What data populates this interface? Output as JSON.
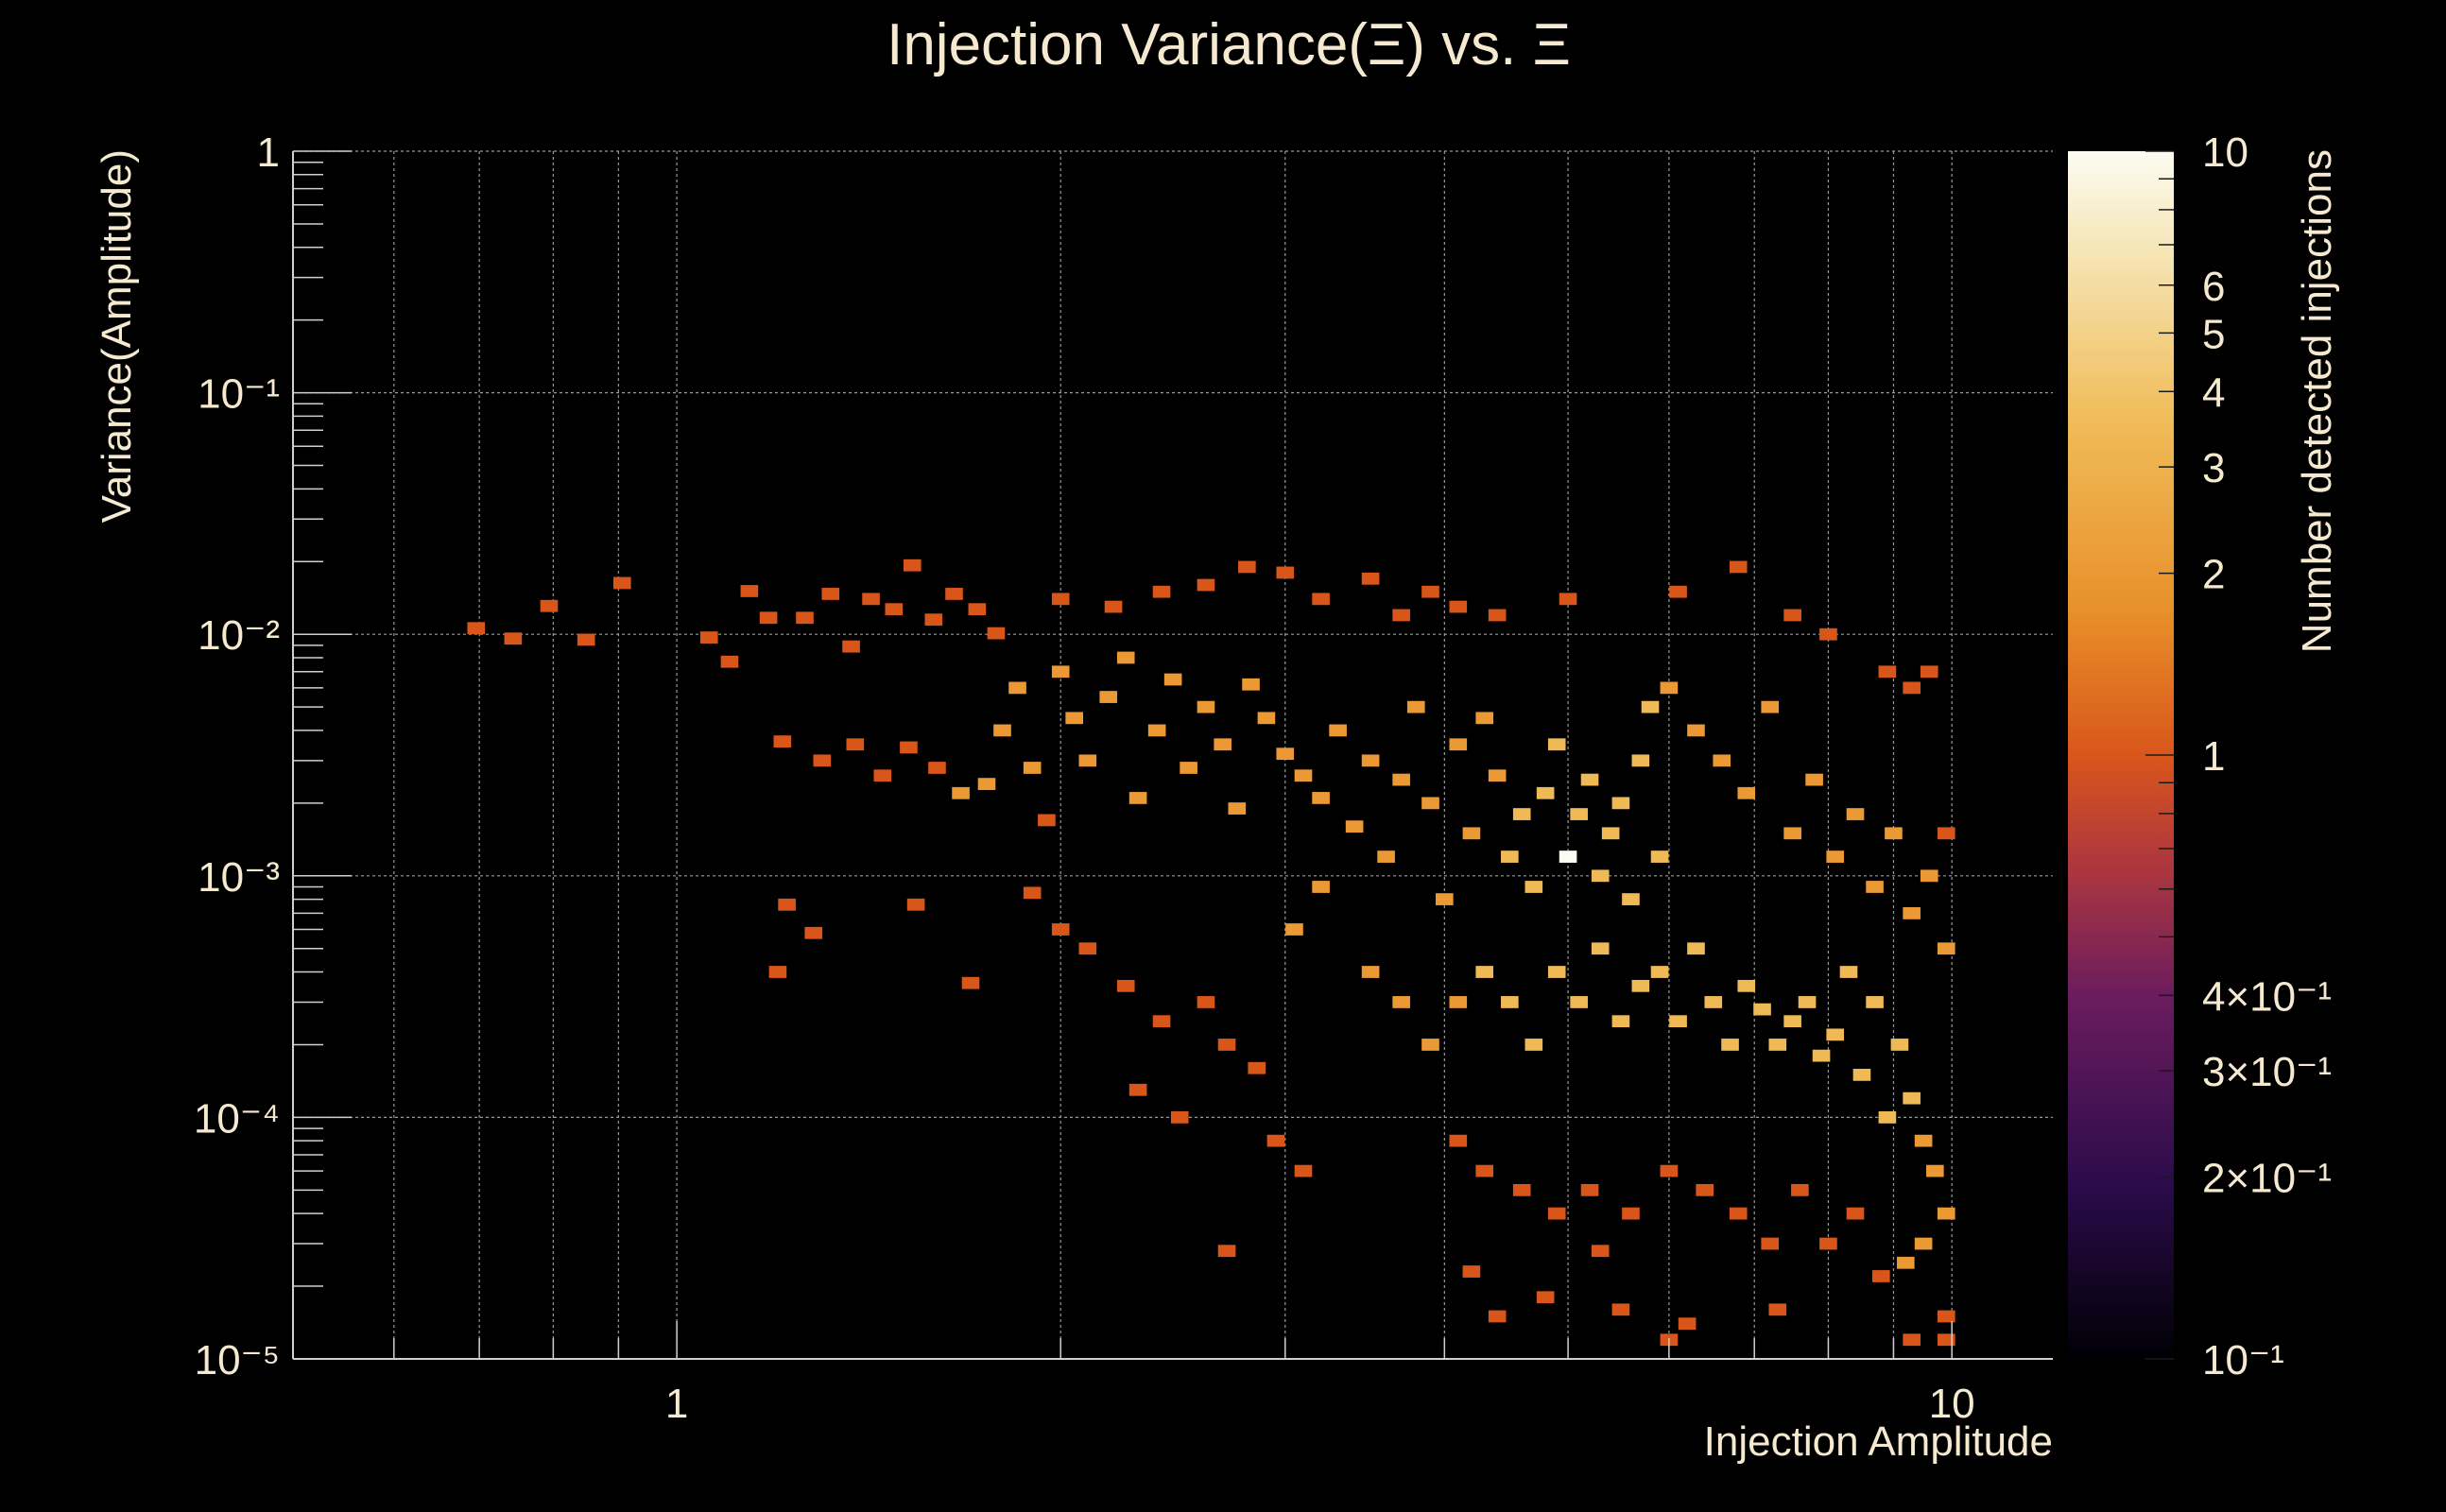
{
  "chart_data": {
    "type": "heatmap",
    "title": "Injection Variance(Ξ) vs. Ξ",
    "xlabel": "Injection Amplitude",
    "ylabel": "Variance(Amplitude)",
    "colorbar_label": "Number detected injections",
    "x_scale": "log",
    "y_scale": "log",
    "z_scale": "log",
    "xlim": [
      0.5,
      12
    ],
    "ylim": [
      1e-05,
      1
    ],
    "zlim": [
      0.1,
      10
    ],
    "x_ticks": [
      "1",
      "10"
    ],
    "y_ticks": [
      "1",
      "10⁻¹",
      "10⁻²",
      "10⁻³",
      "10⁻⁴",
      "10⁻⁵"
    ],
    "z_ticks": [
      "10",
      "6",
      "5",
      "4",
      "3",
      "2",
      "1",
      "4×10⁻¹",
      "3×10⁻¹",
      "2×10⁻¹",
      "10⁻¹"
    ],
    "grid": true,
    "colormap": [
      "#000004",
      "#2a0b4a",
      "#6b1c5e",
      "#b43a3a",
      "#d9561a",
      "#e8902a",
      "#f0bd5a",
      "#f6e6b8",
      "#fcfcf3"
    ],
    "bins_x": 100,
    "bins_y": 100,
    "cells": [
      [
        0.696,
        0.0106,
        1
      ],
      [
        0.744,
        0.0096,
        1
      ],
      [
        0.794,
        0.0131,
        1
      ],
      [
        0.849,
        0.0095,
        1
      ],
      [
        0.906,
        0.0163,
        1
      ],
      [
        1.06,
        0.0097,
        1
      ],
      [
        1.1,
        0.0077,
        1
      ],
      [
        1.14,
        0.0151,
        1
      ],
      [
        1.18,
        0.0117,
        1
      ],
      [
        1.21,
        0.0036,
        1
      ],
      [
        1.26,
        0.0117,
        1
      ],
      [
        1.32,
        0.0147,
        1
      ],
      [
        1.37,
        0.0089,
        1
      ],
      [
        1.42,
        0.014,
        1
      ],
      [
        1.48,
        0.0127,
        1
      ],
      [
        1.53,
        0.0193,
        1
      ],
      [
        1.59,
        0.0115,
        1
      ],
      [
        1.65,
        0.0147,
        1
      ],
      [
        1.72,
        0.0127,
        1
      ],
      [
        1.78,
        0.0101,
        1
      ],
      [
        1.22,
        0.00076,
        1
      ],
      [
        1.28,
        0.00058,
        1
      ],
      [
        1.2,
        0.0004,
        1
      ],
      [
        1.54,
        0.00076,
        1
      ],
      [
        1.7,
        0.00036,
        1
      ],
      [
        1.3,
        0.003,
        1
      ],
      [
        1.38,
        0.0035,
        1
      ],
      [
        1.45,
        0.0026,
        1
      ],
      [
        1.52,
        0.0034,
        1
      ],
      [
        1.6,
        0.0028,
        1
      ],
      [
        1.67,
        0.0022,
        2
      ],
      [
        1.75,
        0.0024,
        2
      ],
      [
        1.8,
        0.004,
        2
      ],
      [
        1.85,
        0.006,
        2
      ],
      [
        1.9,
        0.0028,
        2
      ],
      [
        1.95,
        0.0017,
        1
      ],
      [
        2.0,
        0.007,
        2
      ],
      [
        2.05,
        0.0045,
        2
      ],
      [
        2.1,
        0.003,
        2
      ],
      [
        2.18,
        0.0055,
        2
      ],
      [
        2.25,
        0.008,
        2
      ],
      [
        2.3,
        0.0021,
        2
      ],
      [
        2.38,
        0.004,
        2
      ],
      [
        2.45,
        0.0065,
        2
      ],
      [
        2.52,
        0.0028,
        2
      ],
      [
        2.6,
        0.005,
        2
      ],
      [
        2.68,
        0.0035,
        2
      ],
      [
        2.75,
        0.0019,
        2
      ],
      [
        2.82,
        0.0062,
        2
      ],
      [
        2.9,
        0.0045,
        2
      ],
      [
        1.9,
        0.00085,
        1
      ],
      [
        2.0,
        0.0006,
        1
      ],
      [
        2.1,
        0.0005,
        1
      ],
      [
        2.25,
        0.00035,
        1
      ],
      [
        2.4,
        0.00025,
        1
      ],
      [
        2.6,
        0.0003,
        1
      ],
      [
        2.7,
        0.0002,
        1
      ],
      [
        2.85,
        0.00016,
        1
      ],
      [
        2.3,
        0.00013,
        1
      ],
      [
        2.48,
        0.0001,
        1
      ],
      [
        2.95,
        8e-05,
        1
      ],
      [
        3.1,
        6e-05,
        1
      ],
      [
        2.7,
        2.8e-05,
        1
      ],
      [
        3.05,
        0.0006,
        2
      ],
      [
        3.2,
        0.0009,
        2
      ],
      [
        3.0,
        0.0032,
        2
      ],
      [
        3.1,
        0.0026,
        2
      ],
      [
        3.2,
        0.0021,
        2
      ],
      [
        3.3,
        0.004,
        2
      ],
      [
        3.4,
        0.0016,
        2
      ],
      [
        3.5,
        0.003,
        2
      ],
      [
        3.6,
        0.0012,
        2
      ],
      [
        3.7,
        0.0025,
        2
      ],
      [
        3.8,
        0.005,
        2
      ],
      [
        3.9,
        0.002,
        2
      ],
      [
        4.0,
        0.0008,
        2
      ],
      [
        4.1,
        0.0035,
        2
      ],
      [
        4.2,
        0.0015,
        2
      ],
      [
        4.3,
        0.0045,
        2
      ],
      [
        4.4,
        0.0026,
        2
      ],
      [
        4.5,
        0.0012,
        3
      ],
      [
        4.6,
        0.0018,
        3
      ],
      [
        4.7,
        0.0009,
        3
      ],
      [
        4.8,
        0.0022,
        3
      ],
      [
        4.9,
        0.0035,
        3
      ],
      [
        5.0,
        0.0012,
        10
      ],
      [
        5.1,
        0.0018,
        3
      ],
      [
        5.2,
        0.0025,
        3
      ],
      [
        5.3,
        0.001,
        3
      ],
      [
        5.4,
        0.0015,
        3
      ],
      [
        5.5,
        0.002,
        3
      ],
      [
        5.6,
        0.0008,
        3
      ],
      [
        5.7,
        0.003,
        3
      ],
      [
        5.8,
        0.005,
        3
      ],
      [
        5.9,
        0.0012,
        3
      ],
      [
        3.5,
        0.0004,
        2
      ],
      [
        3.7,
        0.0003,
        2
      ],
      [
        3.9,
        0.0002,
        2
      ],
      [
        4.1,
        0.0003,
        2
      ],
      [
        4.3,
        0.0004,
        3
      ],
      [
        4.5,
        0.0003,
        3
      ],
      [
        4.7,
        0.0002,
        3
      ],
      [
        4.9,
        0.0004,
        3
      ],
      [
        5.1,
        0.0003,
        3
      ],
      [
        5.3,
        0.0005,
        3
      ],
      [
        5.5,
        0.00025,
        3
      ],
      [
        5.7,
        0.00035,
        3
      ],
      [
        5.9,
        0.0004,
        3
      ],
      [
        6.1,
        0.00025,
        3
      ],
      [
        6.3,
        0.0005,
        3
      ],
      [
        6.5,
        0.0003,
        3
      ],
      [
        6.7,
        0.0002,
        3
      ],
      [
        6.9,
        0.00035,
        3
      ],
      [
        7.1,
        0.00028,
        3
      ],
      [
        7.3,
        0.0002,
        3
      ],
      [
        7.5,
        0.00025,
        3
      ],
      [
        7.7,
        0.0003,
        3
      ],
      [
        7.9,
        0.00018,
        3
      ],
      [
        8.1,
        0.00022,
        3
      ],
      [
        8.3,
        0.0004,
        3
      ],
      [
        8.5,
        0.00015,
        3
      ],
      [
        8.7,
        0.0003,
        3
      ],
      [
        8.9,
        0.0001,
        3
      ],
      [
        9.1,
        0.0002,
        3
      ],
      [
        9.3,
        0.00012,
        3
      ],
      [
        9.5,
        8e-05,
        2
      ],
      [
        9.7,
        6e-05,
        2
      ],
      [
        9.9,
        4e-05,
        2
      ],
      [
        9.5,
        3e-05,
        2
      ],
      [
        9.2,
        2.5e-05,
        2
      ],
      [
        4.1,
        8e-05,
        1
      ],
      [
        4.3,
        6e-05,
        1
      ],
      [
        4.6,
        5e-05,
        1
      ],
      [
        4.9,
        4e-05,
        1
      ],
      [
        5.2,
        5e-05,
        1
      ],
      [
        5.6,
        4e-05,
        1
      ],
      [
        6.0,
        6e-05,
        1
      ],
      [
        6.4,
        5e-05,
        1
      ],
      [
        6.8,
        4e-05,
        1
      ],
      [
        7.2,
        3e-05,
        1
      ],
      [
        7.6,
        5e-05,
        1
      ],
      [
        8.0,
        3e-05,
        1
      ],
      [
        8.4,
        4e-05,
        1
      ],
      [
        8.8,
        2.2e-05,
        1
      ],
      [
        9.9,
        1.5e-05,
        1
      ],
      [
        4.2,
        2.3e-05,
        1
      ],
      [
        4.8,
        1.8e-05,
        1
      ],
      [
        5.5,
        1.6e-05,
        1
      ],
      [
        6.2,
        1.4e-05,
        1
      ],
      [
        7.3,
        1.6e-05,
        1
      ],
      [
        9.3,
        1.2e-05,
        1
      ],
      [
        9.9,
        1.2e-05,
        1
      ],
      [
        6.0,
        1.2e-05,
        1
      ],
      [
        4.4,
        1.5e-05,
        1
      ],
      [
        5.3,
        2.8e-05,
        1
      ],
      [
        6.0,
        0.006,
        2
      ],
      [
        6.3,
        0.004,
        2
      ],
      [
        6.6,
        0.003,
        2
      ],
      [
        6.9,
        0.0022,
        2
      ],
      [
        7.2,
        0.005,
        2
      ],
      [
        7.5,
        0.0015,
        2
      ],
      [
        7.8,
        0.0025,
        2
      ],
      [
        8.1,
        0.0012,
        2
      ],
      [
        8.4,
        0.0018,
        2
      ],
      [
        8.7,
        0.0009,
        2
      ],
      [
        9.0,
        0.0015,
        2
      ],
      [
        9.3,
        0.0007,
        2
      ],
      [
        9.6,
        0.001,
        2
      ],
      [
        9.9,
        0.0005,
        2
      ],
      [
        9.9,
        0.0015,
        1
      ],
      [
        6.1,
        0.015,
        1
      ],
      [
        6.8,
        0.019,
        1
      ],
      [
        7.5,
        0.012,
        1
      ],
      [
        8.0,
        0.01,
        1
      ],
      [
        8.9,
        0.007,
        1
      ],
      [
        9.3,
        0.006,
        1
      ],
      [
        9.6,
        0.007,
        1
      ],
      [
        5.0,
        0.014,
        1
      ],
      [
        4.4,
        0.012,
        1
      ],
      [
        3.9,
        0.015,
        1
      ],
      [
        3.5,
        0.017,
        1
      ],
      [
        3.0,
        0.018,
        1
      ],
      [
        2.8,
        0.019,
        1
      ],
      [
        2.6,
        0.016,
        1
      ],
      [
        2.4,
        0.015,
        1
      ],
      [
        2.2,
        0.013,
        1
      ],
      [
        2.0,
        0.014,
        1
      ],
      [
        3.2,
        0.014,
        1
      ],
      [
        3.7,
        0.012,
        1
      ],
      [
        4.1,
        0.013,
        1
      ]
    ]
  }
}
